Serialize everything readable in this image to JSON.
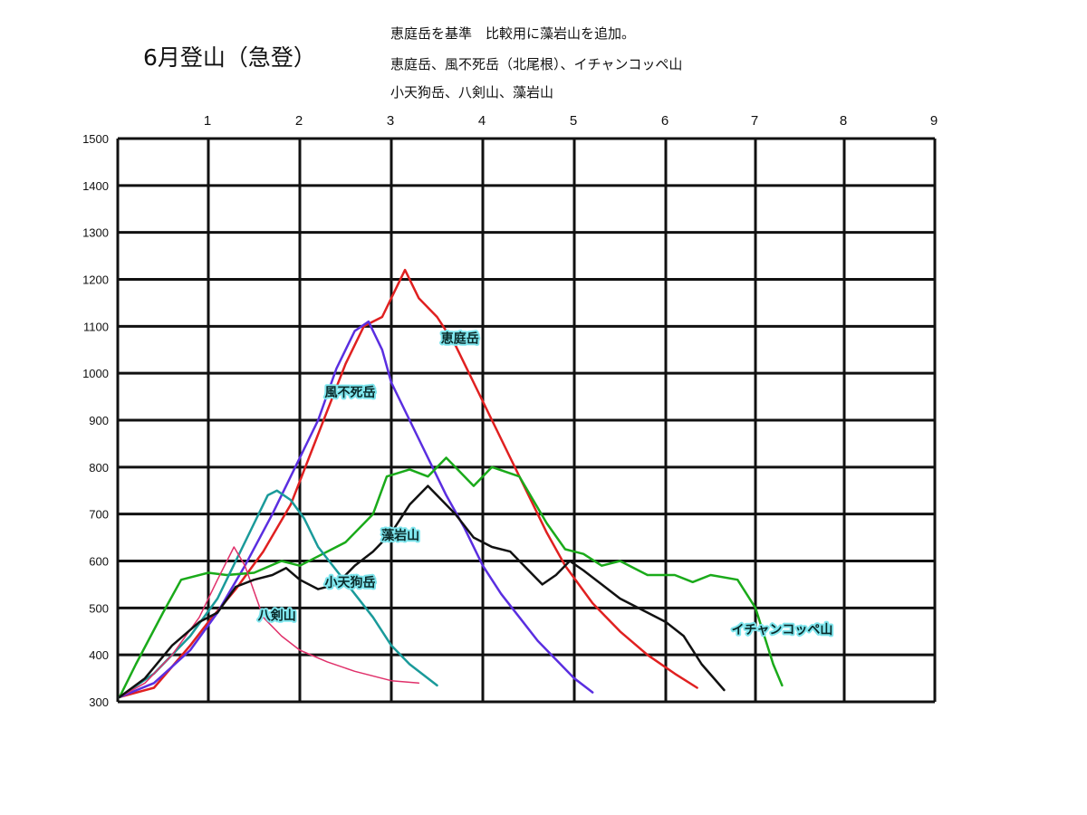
{
  "page": {
    "title": "6月登山（急登）",
    "notes": [
      "恵庭岳を基準　比較用に藻岩山を追加。",
      "恵庭岳、風不死岳（北尾根）、イチャンコッペ山",
      "小天狗岳、八剣山、藻岩山"
    ]
  },
  "chart_data": {
    "type": "line",
    "title": "6月登山（急登）",
    "xlabel": "",
    "ylabel": "",
    "xlim": [
      0,
      9
    ],
    "ylim": [
      300,
      1500
    ],
    "x_ticks": [
      1,
      2,
      3,
      4,
      5,
      6,
      7,
      8,
      9
    ],
    "y_ticks": [
      300,
      400,
      500,
      600,
      700,
      800,
      900,
      1000,
      1100,
      1200,
      1300,
      1400,
      1500
    ],
    "grid": true,
    "x_axis_position": "top",
    "series": [
      {
        "name": "恵庭岳",
        "color": "#e02020",
        "points": [
          [
            0.02,
            310
          ],
          [
            0.4,
            330
          ],
          [
            0.8,
            420
          ],
          [
            1.0,
            470
          ],
          [
            1.3,
            540
          ],
          [
            1.6,
            620
          ],
          [
            1.9,
            720
          ],
          [
            2.1,
            820
          ],
          [
            2.3,
            920
          ],
          [
            2.5,
            1020
          ],
          [
            2.7,
            1100
          ],
          [
            2.9,
            1120
          ],
          [
            3.0,
            1160
          ],
          [
            3.15,
            1220
          ],
          [
            3.3,
            1160
          ],
          [
            3.5,
            1120
          ],
          [
            3.7,
            1060
          ],
          [
            3.9,
            980
          ],
          [
            4.1,
            900
          ],
          [
            4.3,
            820
          ],
          [
            4.5,
            740
          ],
          [
            4.7,
            660
          ],
          [
            4.9,
            590
          ],
          [
            5.2,
            510
          ],
          [
            5.5,
            450
          ],
          [
            5.8,
            400
          ],
          [
            6.1,
            360
          ],
          [
            6.35,
            330
          ]
        ]
      },
      {
        "name": "風不死岳",
        "color": "#5a2ee0",
        "points": [
          [
            0.02,
            310
          ],
          [
            0.4,
            340
          ],
          [
            0.8,
            410
          ],
          [
            1.1,
            490
          ],
          [
            1.4,
            590
          ],
          [
            1.7,
            700
          ],
          [
            2.0,
            820
          ],
          [
            2.2,
            900
          ],
          [
            2.4,
            1010
          ],
          [
            2.6,
            1090
          ],
          [
            2.75,
            1110
          ],
          [
            2.9,
            1050
          ],
          [
            3.0,
            980
          ],
          [
            3.2,
            900
          ],
          [
            3.4,
            820
          ],
          [
            3.6,
            740
          ],
          [
            3.8,
            670
          ],
          [
            4.0,
            590
          ],
          [
            4.2,
            530
          ],
          [
            4.4,
            480
          ],
          [
            4.6,
            430
          ],
          [
            4.8,
            390
          ],
          [
            5.0,
            350
          ],
          [
            5.2,
            320
          ]
        ]
      },
      {
        "name": "イチャンコッペ山",
        "color": "#1aaa1a",
        "points": [
          [
            0.02,
            310
          ],
          [
            0.2,
            380
          ],
          [
            0.5,
            490
          ],
          [
            0.7,
            560
          ],
          [
            1.0,
            575
          ],
          [
            1.2,
            570
          ],
          [
            1.5,
            575
          ],
          [
            1.8,
            600
          ],
          [
            2.0,
            590
          ],
          [
            2.2,
            610
          ],
          [
            2.5,
            640
          ],
          [
            2.8,
            700
          ],
          [
            2.95,
            780
          ],
          [
            3.2,
            795
          ],
          [
            3.4,
            780
          ],
          [
            3.6,
            820
          ],
          [
            3.9,
            760
          ],
          [
            4.1,
            800
          ],
          [
            4.4,
            780
          ],
          [
            4.7,
            680
          ],
          [
            4.9,
            625
          ],
          [
            5.1,
            615
          ],
          [
            5.3,
            590
          ],
          [
            5.5,
            600
          ],
          [
            5.8,
            570
          ],
          [
            6.1,
            570
          ],
          [
            6.3,
            555
          ],
          [
            6.5,
            570
          ],
          [
            6.8,
            560
          ],
          [
            7.0,
            500
          ],
          [
            7.1,
            440
          ],
          [
            7.2,
            380
          ],
          [
            7.3,
            335
          ]
        ]
      },
      {
        "name": "小天狗岳",
        "color": "#1a9a9a",
        "points": [
          [
            0.02,
            310
          ],
          [
            0.4,
            360
          ],
          [
            0.8,
            440
          ],
          [
            1.1,
            520
          ],
          [
            1.3,
            600
          ],
          [
            1.5,
            680
          ],
          [
            1.65,
            740
          ],
          [
            1.75,
            750
          ],
          [
            1.9,
            730
          ],
          [
            2.05,
            690
          ],
          [
            2.2,
            630
          ],
          [
            2.4,
            580
          ],
          [
            2.6,
            530
          ],
          [
            2.8,
            480
          ],
          [
            3.0,
            420
          ],
          [
            3.2,
            380
          ],
          [
            3.5,
            335
          ]
        ]
      },
      {
        "name": "八剣山",
        "color": "#e0306a",
        "points": [
          [
            0.02,
            310
          ],
          [
            0.3,
            340
          ],
          [
            0.6,
            400
          ],
          [
            0.9,
            480
          ],
          [
            1.1,
            560
          ],
          [
            1.28,
            630
          ],
          [
            1.4,
            590
          ],
          [
            1.6,
            480
          ],
          [
            1.8,
            440
          ],
          [
            2.0,
            410
          ],
          [
            2.3,
            385
          ],
          [
            2.6,
            365
          ],
          [
            3.0,
            345
          ],
          [
            3.3,
            340
          ]
        ]
      },
      {
        "name": "藻岩山",
        "color": "#111111",
        "points": [
          [
            0.02,
            310
          ],
          [
            0.3,
            350
          ],
          [
            0.6,
            420
          ],
          [
            0.9,
            470
          ],
          [
            1.1,
            490
          ],
          [
            1.3,
            545
          ],
          [
            1.5,
            560
          ],
          [
            1.7,
            570
          ],
          [
            1.85,
            585
          ],
          [
            2.0,
            560
          ],
          [
            2.2,
            540
          ],
          [
            2.4,
            550
          ],
          [
            2.6,
            590
          ],
          [
            2.8,
            620
          ],
          [
            3.0,
            660
          ],
          [
            3.2,
            720
          ],
          [
            3.4,
            760
          ],
          [
            3.55,
            730
          ],
          [
            3.7,
            700
          ],
          [
            3.9,
            650
          ],
          [
            4.1,
            630
          ],
          [
            4.3,
            620
          ],
          [
            4.5,
            580
          ],
          [
            4.65,
            550
          ],
          [
            4.8,
            570
          ],
          [
            4.95,
            600
          ],
          [
            5.1,
            580
          ],
          [
            5.3,
            550
          ],
          [
            5.5,
            520
          ],
          [
            5.8,
            490
          ],
          [
            6.0,
            470
          ],
          [
            6.2,
            440
          ],
          [
            6.4,
            380
          ],
          [
            6.65,
            325
          ]
        ]
      }
    ],
    "annotations": [
      {
        "text": "恵庭岳",
        "x": 3.75,
        "y": 1065
      },
      {
        "text": "風不死岳",
        "x": 2.55,
        "y": 950
      },
      {
        "text": "藻岩山",
        "x": 3.1,
        "y": 645
      },
      {
        "text": "小天狗岳",
        "x": 2.55,
        "y": 545
      },
      {
        "text": "八剣山",
        "x": 1.75,
        "y": 475
      },
      {
        "text": "イチャンコッペ山",
        "x": 7.3,
        "y": 445
      }
    ]
  }
}
